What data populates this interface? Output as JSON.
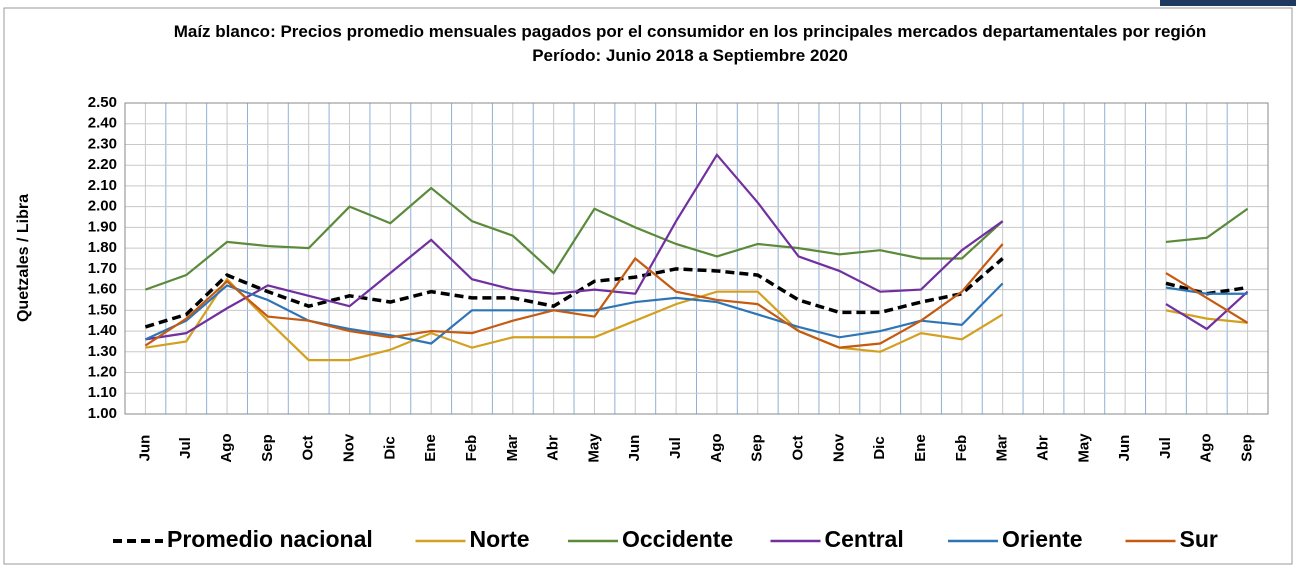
{
  "chart_data": {
    "type": "line",
    "title": "Maíz blanco: Precios promedio mensuales pagados por el consumidor en los principales mercados departamentales por región",
    "subtitle": "Período: Junio 2018 a Septiembre 2020",
    "y_label": "Quetzales / Libra",
    "categories": [
      "Jun",
      "Jul",
      "Ago",
      "Sep",
      "Oct",
      "Nov",
      "Dic",
      "Ene",
      "Feb",
      "Mar",
      "Abr",
      "May",
      "Jun",
      "Jul",
      "Ago",
      "Sep",
      "Oct",
      "Nov",
      "Dic",
      "Ene",
      "Feb",
      "Mar",
      "Abr",
      "May",
      "Jun",
      "Jul",
      "Ago",
      "Sep"
    ],
    "ylim": [
      1.0,
      2.5
    ],
    "yticks": [
      {
        "value": 1.0,
        "label": "1.00"
      },
      {
        "value": 1.1,
        "label": "1.10"
      },
      {
        "value": 1.2,
        "label": "1.20"
      },
      {
        "value": 1.3,
        "label": "1.30"
      },
      {
        "value": 1.4,
        "label": "1.40"
      },
      {
        "value": 1.5,
        "label": "1.50"
      },
      {
        "value": 1.6,
        "label": "1.60"
      },
      {
        "value": 1.7,
        "label": "1.70"
      },
      {
        "value": 1.8,
        "label": "1.80"
      },
      {
        "value": 1.9,
        "label": "1.90"
      },
      {
        "value": 2.0,
        "label": "2.00"
      },
      {
        "value": 2.1,
        "label": "2.10"
      },
      {
        "value": 2.2,
        "label": "2.20"
      },
      {
        "value": 2.3,
        "label": "2.30"
      },
      {
        "value": 2.4,
        "label": "2.40"
      },
      {
        "value": 2.5,
        "label": "2.50"
      }
    ],
    "grid": true,
    "legend": "bottom",
    "series": [
      {
        "name": "Promedio nacional",
        "color": "#000000",
        "dashed": true,
        "values": [
          1.42,
          1.48,
          1.67,
          1.59,
          1.52,
          1.57,
          1.54,
          1.59,
          1.56,
          1.56,
          1.52,
          1.64,
          1.66,
          1.7,
          1.69,
          1.67,
          1.55,
          1.49,
          1.49,
          1.54,
          1.58,
          1.75,
          null,
          null,
          null,
          1.63,
          1.58,
          1.61
        ]
      },
      {
        "name": "Norte",
        "color": "#d4a020",
        "values": [
          1.32,
          1.35,
          1.65,
          1.45,
          1.26,
          1.26,
          1.31,
          1.39,
          1.32,
          1.37,
          1.37,
          1.37,
          1.45,
          1.53,
          1.59,
          1.59,
          1.4,
          1.32,
          1.3,
          1.39,
          1.36,
          1.48,
          null,
          null,
          null,
          1.5,
          1.46,
          1.44
        ]
      },
      {
        "name": "Occidente",
        "color": "#5a8a3a",
        "values": [
          1.6,
          1.67,
          1.83,
          1.81,
          1.8,
          2.0,
          1.92,
          2.09,
          1.93,
          1.86,
          1.68,
          1.99,
          1.9,
          1.82,
          1.76,
          1.82,
          1.8,
          1.77,
          1.79,
          1.75,
          1.75,
          1.93,
          null,
          null,
          null,
          1.83,
          1.85,
          1.99
        ]
      },
      {
        "name": "Central",
        "color": "#7030a0",
        "values": [
          1.36,
          1.39,
          1.51,
          1.62,
          1.57,
          1.52,
          1.68,
          1.84,
          1.65,
          1.6,
          1.58,
          1.6,
          1.58,
          1.93,
          2.25,
          2.02,
          1.76,
          1.69,
          1.59,
          1.6,
          1.79,
          1.93,
          null,
          null,
          null,
          1.53,
          1.41,
          1.59
        ]
      },
      {
        "name": "Oriente",
        "color": "#2e75b6",
        "values": [
          1.36,
          1.45,
          1.62,
          1.55,
          1.45,
          1.41,
          1.38,
          1.34,
          1.5,
          1.5,
          1.5,
          1.5,
          1.54,
          1.56,
          1.54,
          1.48,
          1.42,
          1.37,
          1.4,
          1.45,
          1.43,
          1.63,
          null,
          null,
          null,
          1.61,
          1.58,
          1.58
        ]
      },
      {
        "name": "Sur",
        "color": "#c55a11",
        "values": [
          1.33,
          1.46,
          1.64,
          1.47,
          1.45,
          1.4,
          1.37,
          1.4,
          1.39,
          1.45,
          1.5,
          1.47,
          1.75,
          1.59,
          1.55,
          1.53,
          1.4,
          1.32,
          1.34,
          1.45,
          1.59,
          1.82,
          null,
          null,
          null,
          1.68,
          1.56,
          1.44
        ]
      }
    ]
  }
}
